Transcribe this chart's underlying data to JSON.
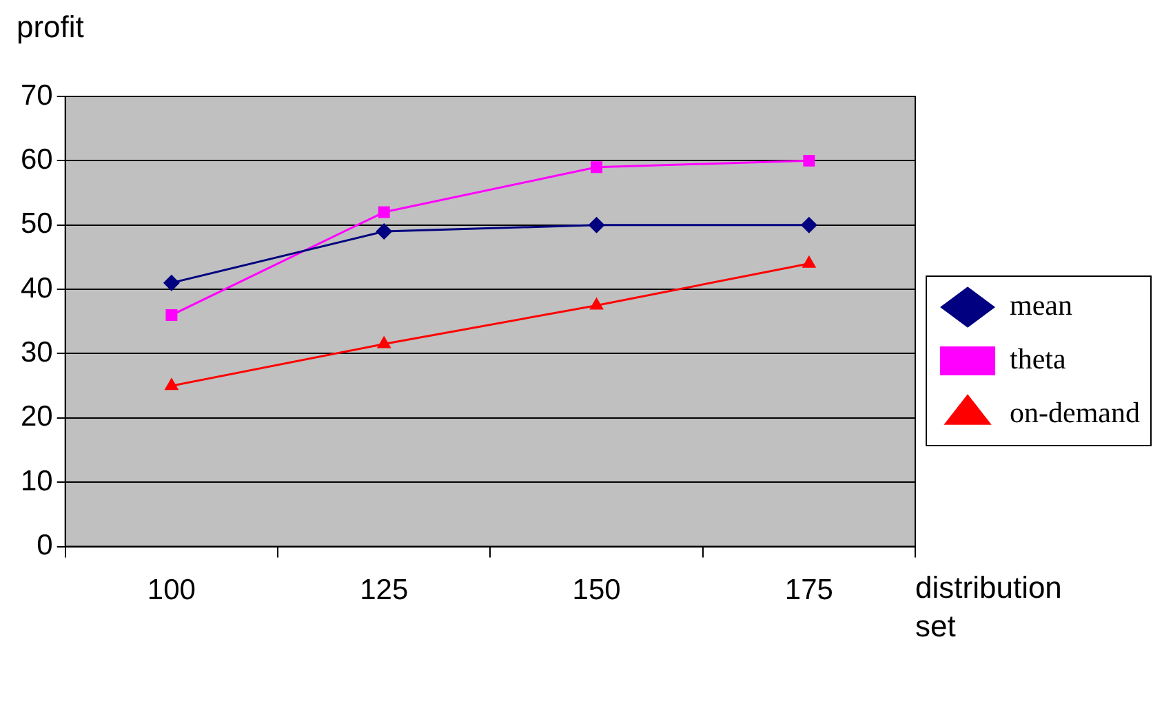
{
  "chart_data": {
    "type": "line",
    "xlabel": "distribution set",
    "ylabel": "profit",
    "categories": [
      "100",
      "125",
      "150",
      "175"
    ],
    "series": [
      {
        "name": "mean",
        "color": "#000080",
        "marker": "diamond",
        "values": [
          41,
          49,
          50,
          50
        ]
      },
      {
        "name": "theta",
        "color": "#ff00ff",
        "marker": "square",
        "values": [
          36,
          52,
          59,
          60
        ]
      },
      {
        "name": "on-demand",
        "color": "#ff0000",
        "marker": "triangle",
        "values": [
          25,
          31.5,
          37.5,
          44
        ]
      }
    ],
    "ylim": [
      0,
      70
    ],
    "yticks": [
      0,
      10,
      20,
      30,
      40,
      50,
      60,
      70
    ],
    "grid": "y",
    "legend": "right",
    "line_style": "solid"
  }
}
